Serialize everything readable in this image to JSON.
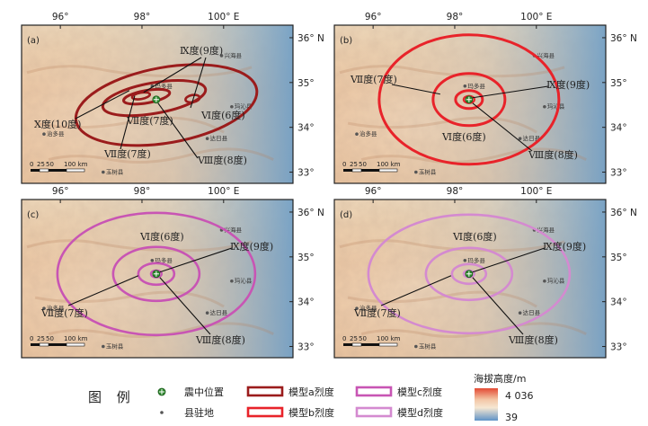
{
  "lon_ticks": [
    "96°",
    "98°",
    "100° E"
  ],
  "lat_ticks": [
    "36° N",
    "35°",
    "34°",
    "33°"
  ],
  "panels": [
    {
      "label": "(a)",
      "model": "a",
      "counties": [
        "兴海县",
        "玛多县",
        "玛沁县",
        "达日县",
        "治多县",
        "玉树县"
      ],
      "intensities": [
        "Ⅸ度(9度)",
        "Ⅶ度(7度)",
        "Ⅵ度(6度)",
        "Ⅹ度(10度)",
        "Ⅶ度(7度)",
        "Ⅷ度(8度)"
      ]
    },
    {
      "label": "(b)",
      "model": "b",
      "counties": [
        "兴海县",
        "玛多县",
        "玛沁县",
        "达日县",
        "治多县",
        "玉树县"
      ],
      "intensities": [
        "Ⅶ度(7度)",
        "Ⅸ度(9度)",
        "Ⅵ度(6度)",
        "Ⅷ度(8度)"
      ]
    },
    {
      "label": "(c)",
      "model": "c",
      "counties": [
        "兴海县",
        "玛多县",
        "玛沁县",
        "达日县",
        "治多县",
        "玉树县"
      ],
      "intensities": [
        "Ⅵ度(6度)",
        "Ⅸ度(9度)",
        "Ⅶ度(7度)",
        "Ⅷ度(8度)"
      ]
    },
    {
      "label": "(d)",
      "model": "d",
      "counties": [
        "兴海县",
        "玛多县",
        "玛沁县",
        "达日县",
        "治多县",
        "玉树县"
      ],
      "intensities": [
        "Ⅵ度(6度)",
        "Ⅸ度(9度)",
        "Ⅶ度(7度)",
        "Ⅷ度(8度)"
      ]
    }
  ],
  "scale_bar": {
    "labels": [
      "0",
      "25",
      "50",
      "100 km"
    ]
  },
  "legend": {
    "title": "图 例",
    "epicenter": "震中位置",
    "county_seat": "县驻地",
    "model_a": "模型a烈度",
    "model_b": "模型b烈度",
    "model_c": "模型c烈度",
    "model_d": "模型d烈度",
    "elevation_title": "海拔高度/m",
    "elevation_max": "4 036",
    "elevation_min": "39"
  },
  "colors": {
    "model_a": "#9b1c1c",
    "model_b": "#e8232a",
    "model_c": "#c855b4",
    "model_d": "#d48ad0",
    "epicenter": "#2f8a2f"
  }
}
